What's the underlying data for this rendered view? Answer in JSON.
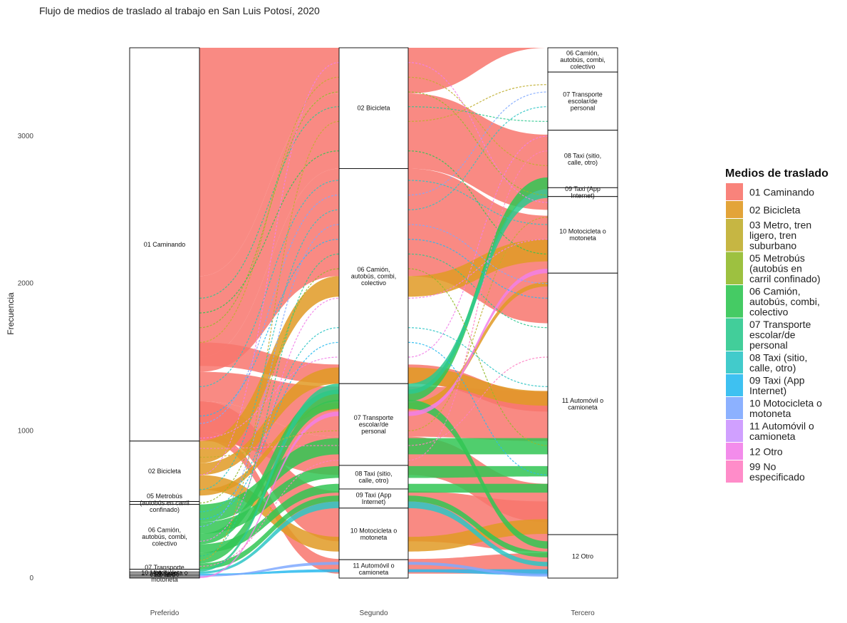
{
  "chart_data": {
    "type": "alluvial",
    "title": "Flujo de medios de traslado al trabajo en San Luis Potosí, 2020",
    "ylabel": "Frecuencia",
    "xlabel": "",
    "ylim": [
      0,
      3600
    ],
    "yticks": [
      0,
      1000,
      2000,
      3000
    ],
    "axes": [
      "Preferido",
      "Segundo",
      "Tercero"
    ],
    "legend_title": "Medios de traslado",
    "legend_position": "right",
    "categories": [
      {
        "id": "01",
        "label": "01 Caminando",
        "color": "#F8766D"
      },
      {
        "id": "02",
        "label": "02 Bicicleta",
        "color": "#E09A24"
      },
      {
        "id": "03",
        "label": "03 Metro, tren ligero, tren suburbano",
        "color": "#C0AE2F"
      },
      {
        "id": "05",
        "label": "05 Metrobús (autobús en carril confinado)",
        "color": "#92BA2B"
      },
      {
        "id": "06",
        "label": "06 Camión, autobús, combi, colectivo",
        "color": "#31C553"
      },
      {
        "id": "07",
        "label": "07 Transporte escolar/de personal",
        "color": "#2DC98F"
      },
      {
        "id": "08",
        "label": "08 Taxi (sitio, calle, otro)",
        "color": "#2DC5C5"
      },
      {
        "id": "09",
        "label": "09 Taxi (App Internet)",
        "color": "#29BAEF"
      },
      {
        "id": "10",
        "label": "10 Motocicleta o motoneta",
        "color": "#7FA9FF"
      },
      {
        "id": "11",
        "label": "11 Automóvil o camioneta",
        "color": "#CB96FF"
      },
      {
        "id": "12",
        "label": "12 Otro",
        "color": "#F27FE9"
      },
      {
        "id": "99",
        "label": "99 No especificado",
        "color": "#FF80C3"
      }
    ],
    "strata": {
      "Preferido": [
        {
          "label": "01 Caminando",
          "lines": [
            "01 Caminando"
          ],
          "from": 930,
          "to": 3600
        },
        {
          "label": "02 Bicicleta",
          "lines": [
            "02 Bicicleta"
          ],
          "from": 520,
          "to": 930
        },
        {
          "label": "05 Metrobús (autobús en carril confinado)",
          "lines": [
            "05 Metrobús",
            "(autobús en carril",
            "confinado)"
          ],
          "from": 500,
          "to": 520
        },
        {
          "label": "06 Camión, autobús, combi, colectivo",
          "lines": [
            "06 Camión,",
            "autobús, combi,",
            "colectivo"
          ],
          "from": 60,
          "to": 500
        },
        {
          "label": "07 Transporte escolar/de personal",
          "lines": [
            "07 Transporte",
            "escolar/de"
          ],
          "from": 40,
          "to": 60
        },
        {
          "label": "08 Taxi (sitio, calle, otro)",
          "lines": [
            "08 Taxi"
          ],
          "from": 28,
          "to": 40
        },
        {
          "label": "09 Taxi (App Internet)",
          "lines": [
            "09 Taxi"
          ],
          "from": 18,
          "to": 28
        },
        {
          "label": "10 Motocicleta o motoneta",
          "lines": [
            "10 Motocicleta o",
            "motoneta"
          ],
          "from": 8,
          "to": 18
        },
        {
          "label": "11 Automóvil o camioneta",
          "lines": [],
          "from": 0,
          "to": 8
        }
      ],
      "Segundo": [
        {
          "label": "02 Bicicleta",
          "lines": [
            "02 Bicicleta"
          ],
          "from": 2780,
          "to": 3600
        },
        {
          "label": "06 Camión, autobús, combi, colectivo",
          "lines": [
            "06 Camión,",
            "autobús, combi,",
            "colectivo"
          ],
          "from": 1320,
          "to": 2780
        },
        {
          "label": "07 Transporte escolar/de personal",
          "lines": [
            "07 Transporte",
            "escolar/de",
            "personal"
          ],
          "from": 765,
          "to": 1320
        },
        {
          "label": "08 Taxi (sitio, calle, otro)",
          "lines": [
            "08 Taxi (sitio,",
            "calle, otro)"
          ],
          "from": 605,
          "to": 765
        },
        {
          "label": "09 Taxi (App Internet)",
          "lines": [
            "09 Taxi (App",
            "Internet)"
          ],
          "from": 475,
          "to": 605
        },
        {
          "label": "10 Motocicleta o motoneta",
          "lines": [
            "10 Motocicleta o",
            "motoneta"
          ],
          "from": 125,
          "to": 475
        },
        {
          "label": "11 Automóvil o camioneta",
          "lines": [
            "11 Automóvil o",
            "camioneta"
          ],
          "from": 0,
          "to": 125
        }
      ],
      "Tercero": [
        {
          "label": "06 Camión, autobús, combi, colectivo",
          "lines": [
            "06 Camión,",
            "autobús, combi,",
            "colectivo"
          ],
          "from": 3435,
          "to": 3600
        },
        {
          "label": "07 Transporte escolar/de personal",
          "lines": [
            "07 Transporte",
            "escolar/de",
            "personal"
          ],
          "from": 3040,
          "to": 3435
        },
        {
          "label": "08 Taxi (sitio, calle, otro)",
          "lines": [
            "08 Taxi (sitio,",
            "calle, otro)"
          ],
          "from": 2650,
          "to": 3040
        },
        {
          "label": "09 Taxi (App Internet)",
          "lines": [
            "09 Taxi (App",
            "Internet)"
          ],
          "from": 2590,
          "to": 2650
        },
        {
          "label": "10 Motocicleta o motoneta",
          "lines": [
            "10 Motocicleta o",
            "motoneta"
          ],
          "from": 2070,
          "to": 2590
        },
        {
          "label": "11 Automóvil o camioneta",
          "lines": [
            "11 Automóvil o",
            "camioneta"
          ],
          "from": 295,
          "to": 2070
        },
        {
          "label": "12 Otro",
          "lines": [
            "12 Otro"
          ],
          "from": 0,
          "to": 295
        }
      ]
    },
    "flows": [
      {
        "cat": "01",
        "left": [
          2050,
          3600
        ],
        "mid": [
          3290,
          3600
        ],
        "right": [
          3600,
          3600
        ]
      },
      {
        "cat": "01",
        "left": [
          1500,
          2050
        ],
        "mid": [
          2780,
          3290
        ],
        "right": [
          2500,
          3010
        ]
      },
      {
        "cat": "01",
        "left": [
          1400,
          1500
        ],
        "mid": [
          2050,
          2780
        ],
        "right": [
          1730,
          2460
        ]
      },
      {
        "cat": "01",
        "left": [
          1440,
          1600
        ],
        "mid": [
          1320,
          1450
        ],
        "right": [
          1130,
          1260
        ]
      },
      {
        "cat": "01",
        "left": [
          1200,
          1400
        ],
        "mid": [
          960,
          1300
        ],
        "right": [
          930,
          1270
        ]
      },
      {
        "cat": "01",
        "left": [
          930,
          1200
        ],
        "mid": [
          700,
          960
        ],
        "right": [
          380,
          640
        ]
      },
      {
        "cat": "01",
        "left": [
          1000,
          1200
        ],
        "mid": [
          250,
          590
        ],
        "right": [
          180,
          520
        ]
      },
      {
        "cat": "01",
        "left": [
          940,
          1000
        ],
        "mid": [
          30,
          130
        ],
        "right": [
          30,
          170
        ]
      },
      {
        "cat": "02",
        "left": [
          780,
          930
        ],
        "mid": [
          1910,
          2050
        ],
        "right": [
          2150,
          2300
        ]
      },
      {
        "cat": "02",
        "left": [
          700,
          780
        ],
        "mid": [
          1320,
          1430
        ],
        "right": [
          1170,
          1270
        ]
      },
      {
        "cat": "02",
        "left": [
          600,
          700
        ],
        "mid": [
          180,
          280
        ],
        "right": [
          300,
          400
        ]
      },
      {
        "cat": "02",
        "left": [
          560,
          600
        ],
        "mid": [
          1140,
          1190
        ],
        "right": [
          1980,
          2010
        ]
      },
      {
        "cat": "06",
        "left": [
          380,
          500
        ],
        "mid": [
          840,
          950
        ],
        "right": [
          840,
          950
        ]
      },
      {
        "cat": "06",
        "left": [
          300,
          380
        ],
        "mid": [
          680,
          760
        ],
        "right": [
          690,
          760
        ]
      },
      {
        "cat": "06",
        "left": [
          230,
          300
        ],
        "mid": [
          1200,
          1280
        ],
        "right": [
          2640,
          2720
        ]
      },
      {
        "cat": "06",
        "left": [
          170,
          230
        ],
        "mid": [
          580,
          640
        ],
        "right": [
          580,
          640
        ]
      },
      {
        "cat": "06",
        "left": [
          100,
          170
        ],
        "mid": [
          1150,
          1210
        ],
        "right": [
          200,
          250
        ]
      },
      {
        "cat": "06",
        "left": [
          60,
          100
        ],
        "mid": [
          520,
          560
        ],
        "right": [
          140,
          180
        ]
      },
      {
        "cat": "07",
        "left": [
          45,
          60
        ],
        "mid": [
          1250,
          1320
        ],
        "right": [
          2580,
          2640
        ]
      },
      {
        "cat": "08",
        "left": [
          30,
          45
        ],
        "mid": [
          475,
          520
        ],
        "right": [
          80,
          110
        ]
      },
      {
        "cat": "09",
        "left": [
          20,
          30
        ],
        "mid": [
          40,
          60
        ],
        "right": [
          20,
          60
        ]
      },
      {
        "cat": "10",
        "left": [
          10,
          20
        ],
        "mid": [
          90,
          110
        ],
        "right": [
          10,
          30
        ]
      },
      {
        "cat": "12",
        "left": [
          0,
          10
        ],
        "mid": [
          1100,
          1130
        ],
        "right": [
          2070,
          2100
        ]
      }
    ],
    "thin_flows": [
      {
        "cat": "03",
        "left": 1600,
        "mid": 3400,
        "right": 2800
      },
      {
        "cat": "05",
        "left": 1700,
        "mid": 3300,
        "right": 2600
      },
      {
        "cat": "06",
        "left": 1800,
        "mid": 2900,
        "right": 2200
      },
      {
        "cat": "07",
        "left": 1900,
        "mid": 3200,
        "right": 3100
      },
      {
        "cat": "08",
        "left": 1300,
        "mid": 2700,
        "right": 2400
      },
      {
        "cat": "09",
        "left": 1100,
        "mid": 2300,
        "right": 1900
      },
      {
        "cat": "10",
        "left": 1050,
        "mid": 2600,
        "right": 3300
      },
      {
        "cat": "12",
        "left": 950,
        "mid": 1500,
        "right": 3000
      },
      {
        "cat": "99",
        "left": 880,
        "mid": 900,
        "right": 1500
      },
      {
        "cat": "03",
        "left": 820,
        "mid": 1000,
        "right": 2450
      },
      {
        "cat": "05",
        "left": 510,
        "mid": 2100,
        "right": 900
      },
      {
        "cat": "08",
        "left": 450,
        "mid": 1700,
        "right": 1300
      },
      {
        "cat": "09",
        "left": 400,
        "mid": 1600,
        "right": 700
      },
      {
        "cat": "10",
        "left": 350,
        "mid": 2400,
        "right": 2000
      },
      {
        "cat": "12",
        "left": 250,
        "mid": 1900,
        "right": 2300
      },
      {
        "cat": "07",
        "left": 150,
        "mid": 2200,
        "right": 1700
      },
      {
        "cat": "03",
        "left": 120,
        "mid": 3100,
        "right": 3350
      },
      {
        "cat": "99",
        "left": 80,
        "mid": 800,
        "right": 2900
      },
      {
        "cat": "08",
        "left": 600,
        "mid": 2500,
        "right": 3200
      },
      {
        "cat": "12",
        "left": 700,
        "mid": 3500,
        "right": 2550
      }
    ]
  }
}
